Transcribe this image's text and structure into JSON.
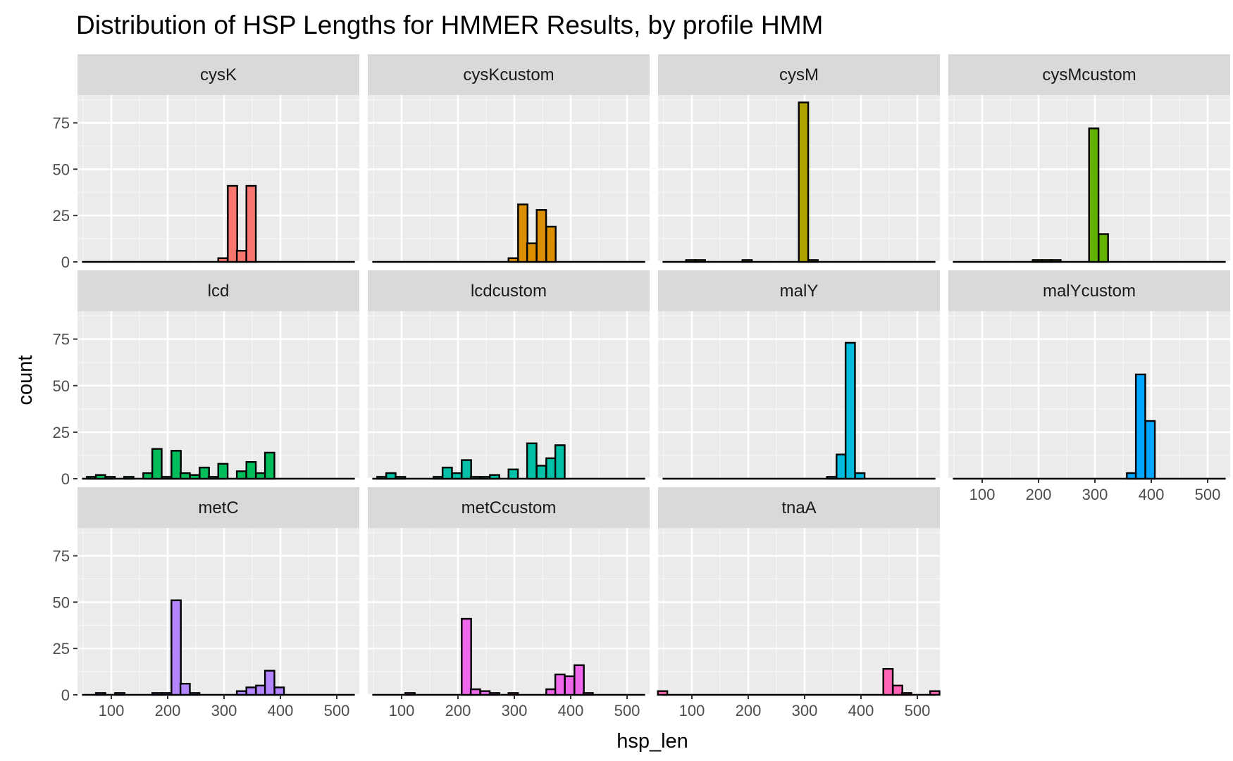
{
  "chart_data": {
    "type": "bar",
    "title": "Distribution of HSP Lengths for HMMER Results, by profile HMM",
    "xlabel": "hsp_len",
    "ylabel": "count",
    "xlim": [
      40,
      540
    ],
    "ylim": [
      0,
      90
    ],
    "x_ticks": [
      100,
      200,
      300,
      400,
      500
    ],
    "y_ticks": [
      0,
      25,
      50,
      75
    ],
    "bin_width": 16.7,
    "grid": true,
    "legend": "none",
    "facets": [
      {
        "name": "cysK",
        "color": "#F8766D",
        "bins": [
          {
            "x": 298,
            "count": 2
          },
          {
            "x": 315,
            "count": 41
          },
          {
            "x": 331,
            "count": 6
          },
          {
            "x": 348,
            "count": 41
          }
        ]
      },
      {
        "name": "cysKcustom",
        "color": "#DB8E00",
        "bins": [
          {
            "x": 298,
            "count": 2
          },
          {
            "x": 315,
            "count": 31
          },
          {
            "x": 331,
            "count": 10
          },
          {
            "x": 348,
            "count": 28
          },
          {
            "x": 365,
            "count": 19
          }
        ]
      },
      {
        "name": "cysM",
        "color": "#AEA200",
        "bins": [
          {
            "x": 98,
            "count": 1
          },
          {
            "x": 115,
            "count": 1
          },
          {
            "x": 198,
            "count": 1
          },
          {
            "x": 298,
            "count": 86
          },
          {
            "x": 315,
            "count": 1
          }
        ]
      },
      {
        "name": "cysMcustom",
        "color": "#64B200",
        "bins": [
          {
            "x": 198,
            "count": 1
          },
          {
            "x": 215,
            "count": 1
          },
          {
            "x": 231,
            "count": 1
          },
          {
            "x": 298,
            "count": 72
          },
          {
            "x": 315,
            "count": 15
          }
        ]
      },
      {
        "name": "lcd",
        "color": "#00BD5C",
        "bins": [
          {
            "x": 65,
            "count": 1
          },
          {
            "x": 81,
            "count": 2
          },
          {
            "x": 98,
            "count": 1
          },
          {
            "x": 131,
            "count": 1
          },
          {
            "x": 165,
            "count": 3
          },
          {
            "x": 181,
            "count": 16
          },
          {
            "x": 198,
            "count": 1
          },
          {
            "x": 215,
            "count": 15
          },
          {
            "x": 231,
            "count": 3
          },
          {
            "x": 248,
            "count": 2
          },
          {
            "x": 265,
            "count": 6
          },
          {
            "x": 281,
            "count": 1
          },
          {
            "x": 298,
            "count": 8
          },
          {
            "x": 331,
            "count": 4
          },
          {
            "x": 348,
            "count": 9
          },
          {
            "x": 365,
            "count": 3
          },
          {
            "x": 381,
            "count": 14
          }
        ]
      },
      {
        "name": "lcdcustom",
        "color": "#00C1A7",
        "bins": [
          {
            "x": 65,
            "count": 1
          },
          {
            "x": 81,
            "count": 3
          },
          {
            "x": 98,
            "count": 1
          },
          {
            "x": 165,
            "count": 1
          },
          {
            "x": 181,
            "count": 6
          },
          {
            "x": 198,
            "count": 3
          },
          {
            "x": 215,
            "count": 10
          },
          {
            "x": 231,
            "count": 1
          },
          {
            "x": 248,
            "count": 1
          },
          {
            "x": 265,
            "count": 2
          },
          {
            "x": 298,
            "count": 5
          },
          {
            "x": 331,
            "count": 19
          },
          {
            "x": 348,
            "count": 7
          },
          {
            "x": 365,
            "count": 11
          },
          {
            "x": 381,
            "count": 18
          }
        ]
      },
      {
        "name": "malY",
        "color": "#00BADE",
        "bins": [
          {
            "x": 348,
            "count": 1
          },
          {
            "x": 365,
            "count": 13
          },
          {
            "x": 381,
            "count": 73
          },
          {
            "x": 398,
            "count": 3
          }
        ]
      },
      {
        "name": "malYcustom",
        "color": "#00A6FF",
        "bins": [
          {
            "x": 365,
            "count": 3
          },
          {
            "x": 381,
            "count": 56
          },
          {
            "x": 398,
            "count": 31
          }
        ]
      },
      {
        "name": "metC",
        "color": "#B385FF",
        "bins": [
          {
            "x": 81,
            "count": 1
          },
          {
            "x": 115,
            "count": 1
          },
          {
            "x": 181,
            "count": 1
          },
          {
            "x": 198,
            "count": 1
          },
          {
            "x": 215,
            "count": 51
          },
          {
            "x": 231,
            "count": 6
          },
          {
            "x": 248,
            "count": 1
          },
          {
            "x": 331,
            "count": 2
          },
          {
            "x": 348,
            "count": 4
          },
          {
            "x": 365,
            "count": 5
          },
          {
            "x": 381,
            "count": 13
          },
          {
            "x": 398,
            "count": 4
          }
        ]
      },
      {
        "name": "metCcustom",
        "color": "#EF67EB",
        "bins": [
          {
            "x": 115,
            "count": 1
          },
          {
            "x": 215,
            "count": 41
          },
          {
            "x": 231,
            "count": 3
          },
          {
            "x": 248,
            "count": 2
          },
          {
            "x": 265,
            "count": 1
          },
          {
            "x": 298,
            "count": 1
          },
          {
            "x": 365,
            "count": 3
          },
          {
            "x": 381,
            "count": 11
          },
          {
            "x": 398,
            "count": 10
          },
          {
            "x": 415,
            "count": 16
          },
          {
            "x": 431,
            "count": 1
          }
        ]
      },
      {
        "name": "tnaA",
        "color": "#FF63B6",
        "bins": [
          {
            "x": 48,
            "count": 2
          },
          {
            "x": 448,
            "count": 14
          },
          {
            "x": 465,
            "count": 5
          },
          {
            "x": 481,
            "count": 1
          },
          {
            "x": 531,
            "count": 2
          }
        ]
      }
    ]
  }
}
